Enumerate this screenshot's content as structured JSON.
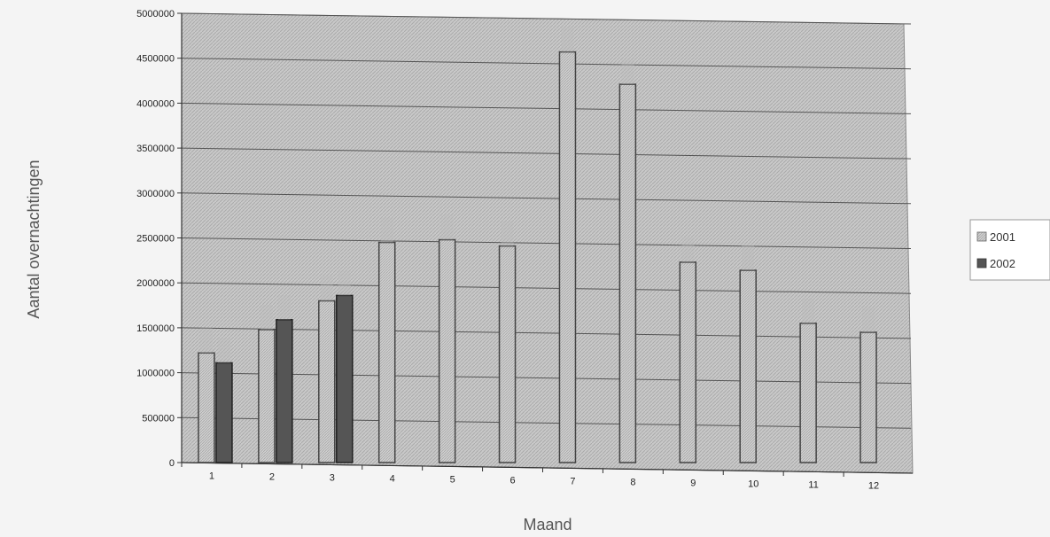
{
  "chart_data": {
    "type": "bar",
    "xlabel": "Maand",
    "ylabel": "Aantal overnachtingen",
    "categories": [
      "1",
      "2",
      "3",
      "4",
      "5",
      "6",
      "7",
      "8",
      "9",
      "10",
      "11",
      "12"
    ],
    "ylim": [
      0,
      5000000
    ],
    "yticks": [
      0,
      500000,
      1000000,
      1500000,
      2000000,
      2500000,
      3000000,
      3500000,
      4000000,
      4500000,
      5000000
    ],
    "grid": true,
    "legend_position": "right",
    "series": [
      {
        "name": "2001",
        "color": "#bdbdbd",
        "values": [
          1220000,
          1480000,
          1800000,
          2450000,
          2480000,
          2410000,
          4570000,
          4210000,
          2230000,
          2140000,
          1550000,
          1450000
        ]
      },
      {
        "name": "2002",
        "color": "#555555",
        "values": [
          1110000,
          1590000,
          1860000,
          null,
          null,
          null,
          null,
          null,
          null,
          null,
          null,
          null
        ]
      }
    ]
  }
}
